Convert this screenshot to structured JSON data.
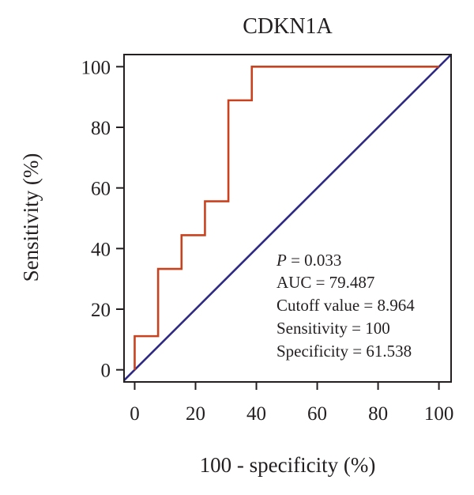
{
  "chart_data": {
    "type": "line",
    "title": "CDKN1A",
    "xlabel": "100 - specificity (%)",
    "ylabel": "Sensitivity (%)",
    "xlim": [
      -3.5,
      104
    ],
    "ylim": [
      -4,
      104
    ],
    "xticks": [
      0,
      20,
      40,
      60,
      80,
      100
    ],
    "yticks": [
      0,
      20,
      40,
      60,
      80,
      100
    ],
    "xtick_labels": [
      "0",
      "20",
      "40",
      "60",
      "80",
      "100"
    ],
    "ytick_labels": [
      "0",
      "20",
      "40",
      "60",
      "80",
      "100"
    ],
    "grid": false,
    "series": [
      {
        "color": "#c8421f",
        "style": "step",
        "x": [
          0,
          0,
          7.7,
          7.7,
          15.4,
          15.4,
          23.1,
          23.1,
          30.8,
          30.8,
          38.5,
          38.5,
          100
        ],
        "y": [
          0,
          11.1,
          11.1,
          33.3,
          33.3,
          44.4,
          44.4,
          55.6,
          55.6,
          88.9,
          88.9,
          100,
          100
        ]
      },
      {
        "color": "#2e2a84",
        "style": "reference",
        "x": [
          -3.5,
          104
        ],
        "y": [
          -3.5,
          104
        ]
      }
    ],
    "annotations": {
      "p_label": "P",
      "p_value": " = 0.033",
      "auc": "AUC = 79.487",
      "cutoff": "Cutoff value = 8.964",
      "sensitivity": "Sensitivity = 100",
      "specificity": "Specificity = 61.538"
    }
  }
}
